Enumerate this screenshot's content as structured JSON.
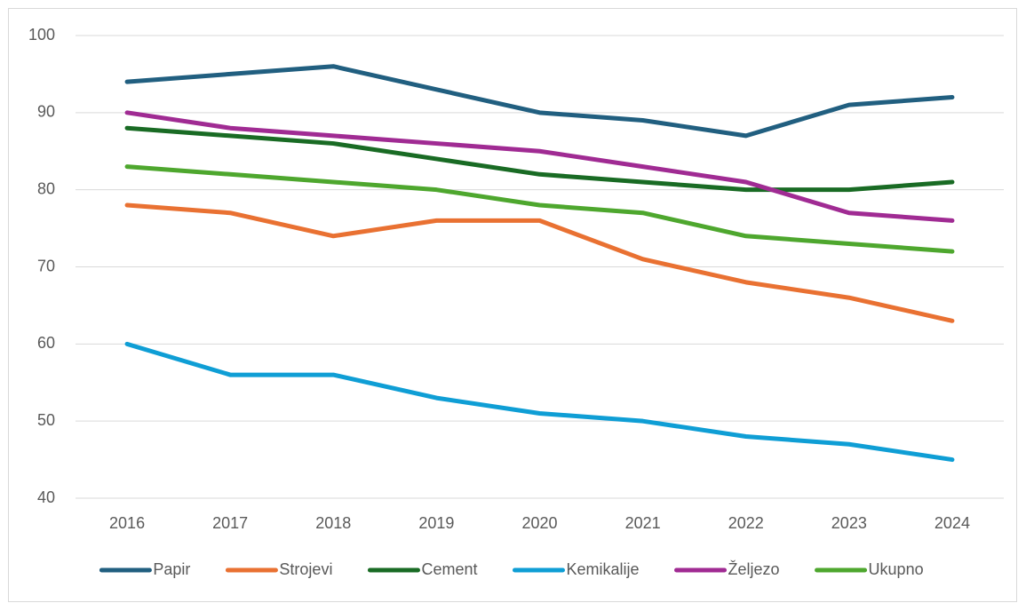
{
  "chart_data": {
    "type": "line",
    "categories": [
      "2016",
      "2017",
      "2018",
      "2019",
      "2020",
      "2021",
      "2022",
      "2023",
      "2024"
    ],
    "series": [
      {
        "name": "Papir",
        "color": "#215f80",
        "values": [
          94,
          95,
          96,
          93,
          90,
          89,
          87,
          91,
          92
        ]
      },
      {
        "name": "Strojevi",
        "color": "#e97132",
        "values": [
          78,
          77,
          74,
          76,
          76,
          71,
          68,
          66,
          63
        ]
      },
      {
        "name": "Cement",
        "color": "#196b24",
        "values": [
          88,
          87,
          86,
          84,
          82,
          81,
          80,
          80,
          81
        ]
      },
      {
        "name": "Kemikalije",
        "color": "#0f9ed5",
        "values": [
          60,
          56,
          56,
          53,
          51,
          50,
          48,
          47,
          45
        ]
      },
      {
        "name": "Željezo",
        "color": "#a02b93",
        "values": [
          90,
          88,
          87,
          86,
          85,
          83,
          81,
          77,
          76
        ]
      },
      {
        "name": "Ukupno",
        "color": "#4ea72e",
        "values": [
          83,
          82,
          81,
          80,
          78,
          77,
          74,
          73,
          72
        ]
      }
    ],
    "ylim": [
      40,
      100
    ],
    "yticks": [
      40,
      50,
      60,
      70,
      80,
      90,
      100
    ],
    "grid": true,
    "legend": "bottom"
  }
}
